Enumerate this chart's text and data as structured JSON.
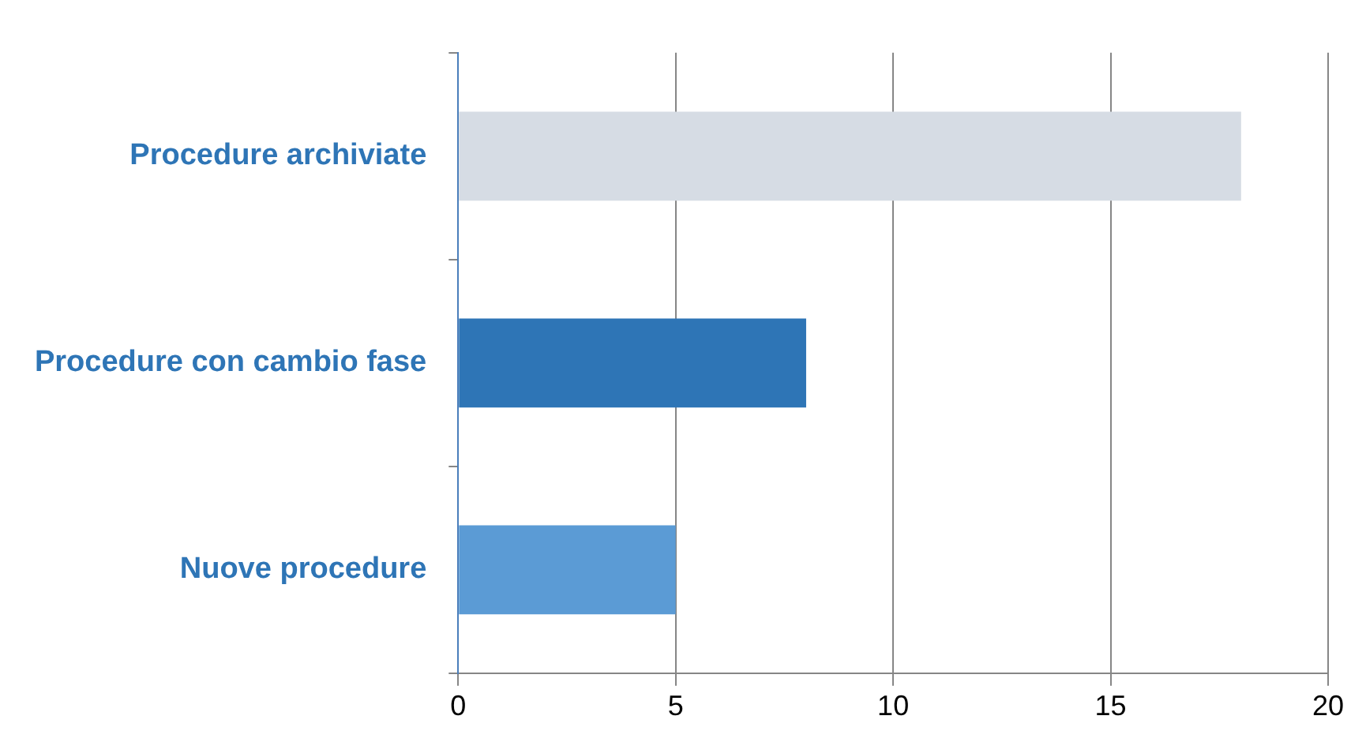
{
  "chart_data": {
    "type": "bar",
    "orientation": "horizontal",
    "categories": [
      "Procedure archiviate",
      "Procedure con cambio fase",
      "Nuove procedure"
    ],
    "values": [
      18,
      8,
      5
    ],
    "colors": [
      "#d6dce4",
      "#2e75b6",
      "#5b9bd5"
    ],
    "xlim": [
      0,
      20
    ],
    "xticks": [
      0,
      5,
      10,
      15,
      20
    ],
    "grid": "x"
  }
}
